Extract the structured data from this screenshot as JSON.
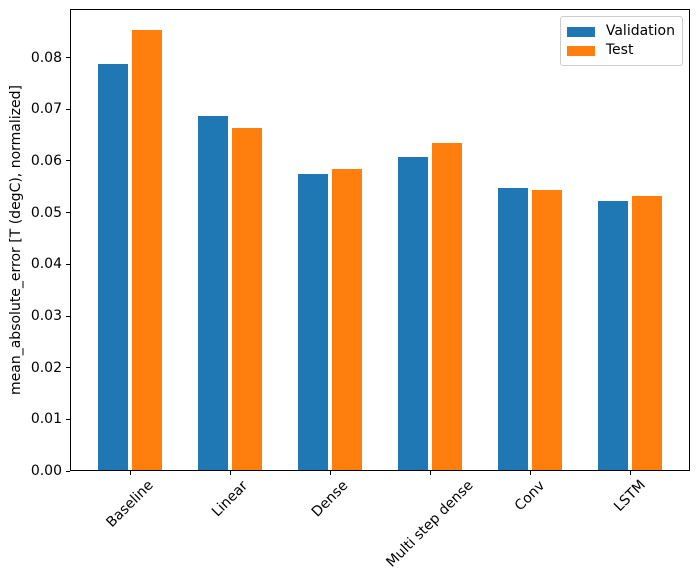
{
  "chart_data": {
    "type": "bar",
    "title": "",
    "xlabel": "",
    "ylabel": "mean_absolute_error [T (degC), normalized]",
    "categories": [
      "Baseline",
      "Linear",
      "Dense",
      "Multi step dense",
      "Conv",
      "LSTM"
    ],
    "series": [
      {
        "name": "Validation",
        "color": "#1f77b4",
        "values": [
          0.0785,
          0.0685,
          0.0573,
          0.0605,
          0.0545,
          0.0521
        ]
      },
      {
        "name": "Test",
        "color": "#ff7f0e",
        "values": [
          0.0851,
          0.0662,
          0.0582,
          0.0632,
          0.0542,
          0.0531
        ]
      }
    ],
    "ylim": [
      0,
      0.0894
    ],
    "xlim": [
      -0.6,
      5.6
    ],
    "yticks": [
      0,
      0.01,
      0.02,
      0.03,
      0.04,
      0.05,
      0.06,
      0.07,
      0.08
    ],
    "ytick_labels": [
      "0.00",
      "0.01",
      "0.02",
      "0.03",
      "0.04",
      "0.05",
      "0.06",
      "0.07",
      "0.08"
    ],
    "xtick_rotation": 45,
    "bar_width": 0.3,
    "bar_offset": 0.17,
    "grid": false,
    "legend_position": "upper right",
    "axis_color": "#000000",
    "background_color": "#ffffff"
  }
}
